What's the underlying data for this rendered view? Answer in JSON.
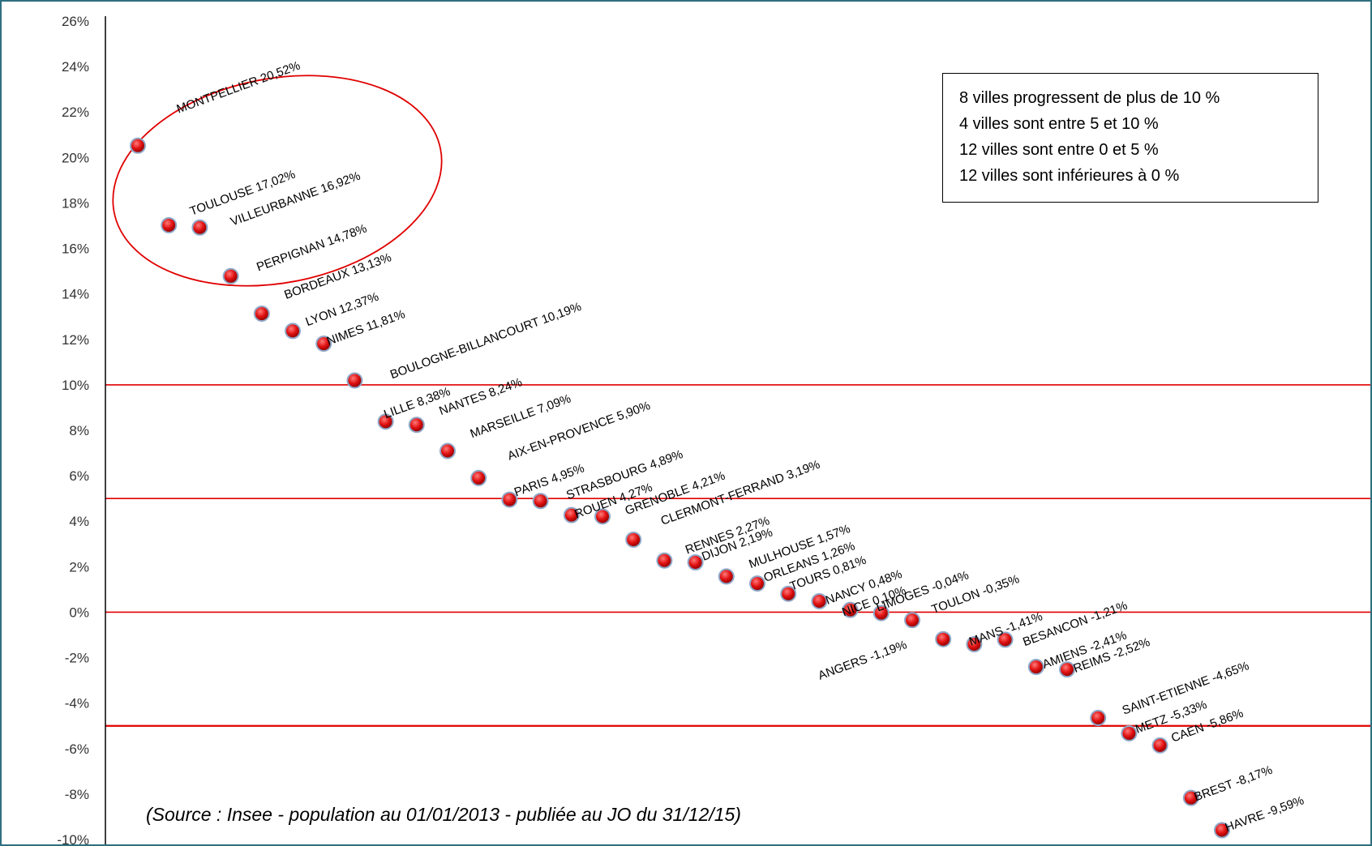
{
  "chart_data": {
    "type": "scatter",
    "ylim": [
      -10,
      26
    ],
    "yticks": [
      26,
      24,
      22,
      20,
      18,
      16,
      14,
      12,
      10,
      8,
      6,
      4,
      2,
      0,
      -2,
      -4,
      -6,
      -8,
      -10
    ],
    "ytick_labels": [
      "26%",
      "24%",
      "22%",
      "20%",
      "18%",
      "16%",
      "14%",
      "12%",
      "10%",
      "8%",
      "6%",
      "4%",
      "2%",
      "0%",
      "-2%",
      "-4%",
      "-6%",
      "-8%",
      "-10%"
    ],
    "reference_lines": [
      10,
      5,
      0,
      -5
    ],
    "points": [
      {
        "label": "MONTPELLIER 20,52%",
        "value": 20.52
      },
      {
        "label": "TOULOUSE 17,02%",
        "value": 17.02
      },
      {
        "label": "VILLEURBANNE 16,92%",
        "value": 16.92
      },
      {
        "label": "PERPIGNAN 14,78%",
        "value": 14.78
      },
      {
        "label": "BORDEAUX 13,13%",
        "value": 13.13
      },
      {
        "label": "LYON 12,37%",
        "value": 12.37
      },
      {
        "label": "NIMES 11,81%",
        "value": 11.81
      },
      {
        "label": "BOULOGNE-BILLANCOURT 10,19%",
        "value": 10.19
      },
      {
        "label": "LILLE 8,38%",
        "value": 8.38
      },
      {
        "label": "NANTES 8,24%",
        "value": 8.24
      },
      {
        "label": "MARSEILLE 7,09%",
        "value": 7.09
      },
      {
        "label": "AIX-EN-PROVENCE 5,90%",
        "value": 5.9
      },
      {
        "label": "PARIS 4,95%",
        "value": 4.95
      },
      {
        "label": "STRASBOURG 4,89%",
        "value": 4.89
      },
      {
        "label": "ROUEN 4,27%",
        "value": 4.27
      },
      {
        "label": "GRENOBLE 4,21%",
        "value": 4.21
      },
      {
        "label": "CLERMONT-FERRAND 3,19%",
        "value": 3.19
      },
      {
        "label": "RENNES 2,27%",
        "value": 2.27
      },
      {
        "label": "DIJON 2,19%",
        "value": 2.19
      },
      {
        "label": "MULHOUSE 1,57%",
        "value": 1.57
      },
      {
        "label": "ORLEANS 1,26%",
        "value": 1.26
      },
      {
        "label": "TOURS 0,81%",
        "value": 0.81
      },
      {
        "label": "NANCY 0,48%",
        "value": 0.48
      },
      {
        "label": "NICE 0,10%",
        "value": 0.1
      },
      {
        "label": "LIMOGES -0,04%",
        "value": -0.04
      },
      {
        "label": "TOULON -0,35%",
        "value": -0.35
      },
      {
        "label": "ANGERS -1,19%",
        "value": -1.19
      },
      {
        "label": "MANS -1,41%",
        "value": -1.41
      },
      {
        "label": "BESANCON -1,21%",
        "value": -1.21
      },
      {
        "label": "AMIENS -2,41%",
        "value": -2.41
      },
      {
        "label": "REIMS -2,52%",
        "value": -2.52
      },
      {
        "label": "SAINT-ETIENNE -4,65%",
        "value": -4.65
      },
      {
        "label": "METZ -5,33%",
        "value": -5.33
      },
      {
        "label": "CAEN -5,86%",
        "value": -5.86
      },
      {
        "label": "BREST -8,17%",
        "value": -8.17
      },
      {
        "label": "HAVRE -9,59%",
        "value": -9.59
      }
    ]
  },
  "info_box": {
    "lines": [
      "8 villes progressent de plus de 10 %",
      "4 villes sont entre 5 et 10 %",
      "12 villes sont entre 0 et 5 %",
      "12 villes sont inférieures à 0 %"
    ]
  },
  "source_note": "(Source : Insee -  population au 01/01/2013 - publiée au JO du 31/12/15)",
  "colors": {
    "marker": "#e01010",
    "reference_line": "#e00000",
    "highlight_ellipse": "#e00000",
    "axis": "#000000",
    "frame": "#2e6f80"
  }
}
